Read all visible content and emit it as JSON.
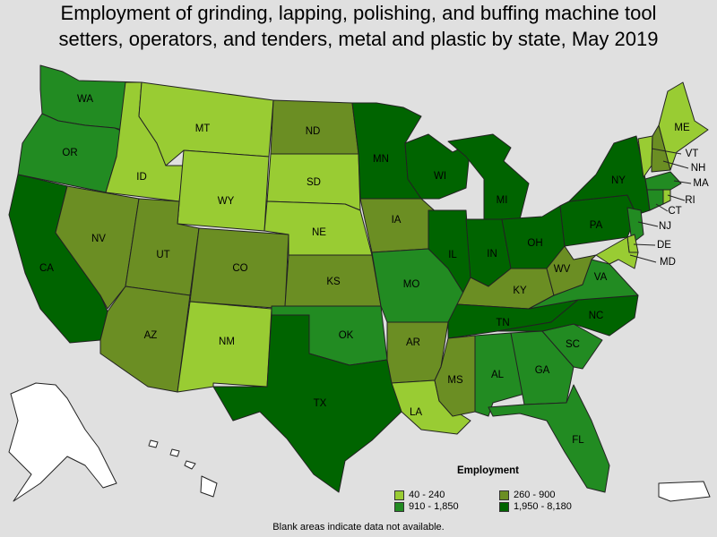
{
  "title_line1": "Employment of grinding, lapping, polishing, and buffing machine tool",
  "title_line2": "setters, operators, and tenders, metal and plastic by state, May 2019",
  "legend": {
    "title": "Employment",
    "items": [
      {
        "label": "40 - 240",
        "color": "#99cc33"
      },
      {
        "label": "260 - 900",
        "color": "#6b8e23"
      },
      {
        "label": "910 - 1,850",
        "color": "#228b22"
      },
      {
        "label": "1,950 - 8,180",
        "color": "#006400"
      }
    ]
  },
  "note": "Blank areas indicate data not available.",
  "states": {
    "WA": "#228b22",
    "OR": "#228b22",
    "CA": "#006400",
    "ID": "#99cc33",
    "NV": "#6b8e23",
    "MT": "#99cc33",
    "WY": "#99cc33",
    "UT": "#6b8e23",
    "AZ": "#6b8e23",
    "CO": "#6b8e23",
    "NM": "#99cc33",
    "ND": "#6b8e23",
    "SD": "#99cc33",
    "NE": "#99cc33",
    "KS": "#6b8e23",
    "OK": "#228b22",
    "TX": "#006400",
    "MN": "#006400",
    "IA": "#6b8e23",
    "MO": "#228b22",
    "AR": "#6b8e23",
    "LA": "#99cc33",
    "WI": "#006400",
    "IL": "#006400",
    "MI": "#006400",
    "IN": "#006400",
    "OH": "#006400",
    "KY": "#6b8e23",
    "TN": "#006400",
    "MS": "#6b8e23",
    "AL": "#228b22",
    "GA": "#228b22",
    "FL": "#228b22",
    "SC": "#228b22",
    "NC": "#006400",
    "VA": "#228b22",
    "WV": "#6b8e23",
    "PA": "#006400",
    "NY": "#006400",
    "ME": "#99cc33",
    "VT": "#99cc33",
    "NH": "#6b8e23",
    "MA": "#228b22",
    "CT": "#228b22",
    "RI": "#99cc33",
    "NJ": "#228b22",
    "DE": "#99cc33",
    "MD": "#99cc33",
    "AK": "#ffffff",
    "HI": "#ffffff",
    "PR": "#ffffff"
  }
}
